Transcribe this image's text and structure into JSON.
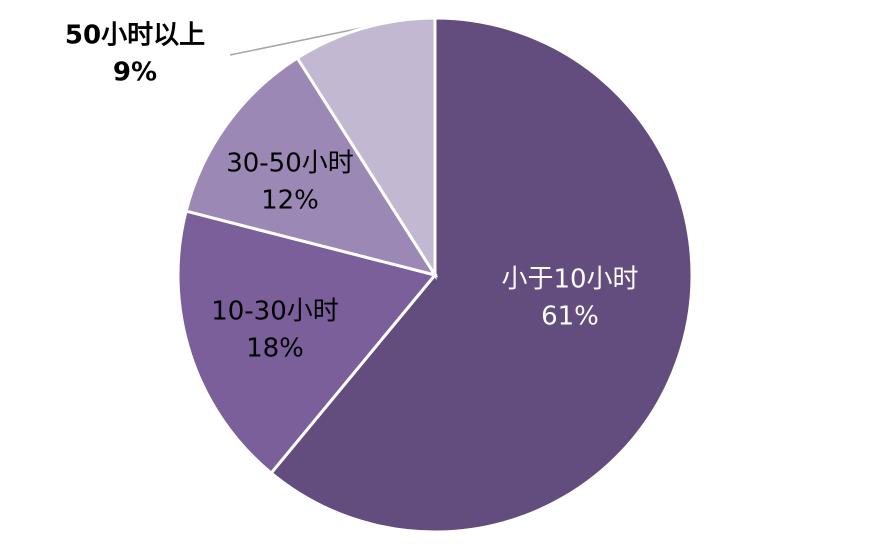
{
  "chart_data": {
    "type": "pie",
    "categories": [
      "小于10小时",
      "10-30小时",
      "30-50小时",
      "50小时以上"
    ],
    "values": [
      61,
      18,
      12,
      9
    ],
    "value_labels": [
      "61%",
      "18%",
      "12%",
      "9%"
    ],
    "colors": [
      "#624d7e",
      "#7a5f9a",
      "#9c88b4",
      "#c2b8d2"
    ]
  }
}
